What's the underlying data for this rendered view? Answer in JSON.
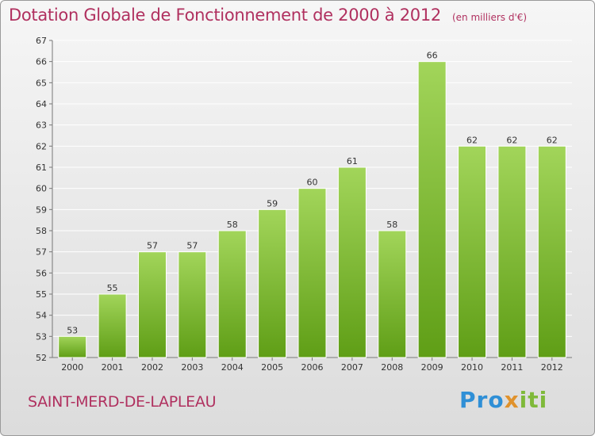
{
  "title": "Dotation Globale de Fonctionnement de 2000 à 2012",
  "unit_note": "(en milliers d'€)",
  "commune": "SAINT-MERD-DE-LAPLEAU",
  "logo": {
    "part1": "Pro",
    "part2": "x",
    "part3": "iti"
  },
  "colors": {
    "title": "#b0305f",
    "bar_top": "#a2d55a",
    "bar_bottom": "#5f9e16",
    "grid": "#ffffff"
  },
  "chart_data": {
    "type": "bar",
    "categories": [
      "2000",
      "2001",
      "2002",
      "2003",
      "2004",
      "2005",
      "2006",
      "2007",
      "2008",
      "2009",
      "2010",
      "2011",
      "2012"
    ],
    "values": [
      53,
      55,
      57,
      57,
      58,
      59,
      60,
      61,
      58,
      66,
      62,
      62,
      62
    ],
    "ylim": [
      52,
      67
    ],
    "yticks": [
      52,
      53,
      54,
      55,
      56,
      57,
      58,
      59,
      60,
      61,
      62,
      63,
      64,
      65,
      66,
      67
    ],
    "grid": true
  }
}
